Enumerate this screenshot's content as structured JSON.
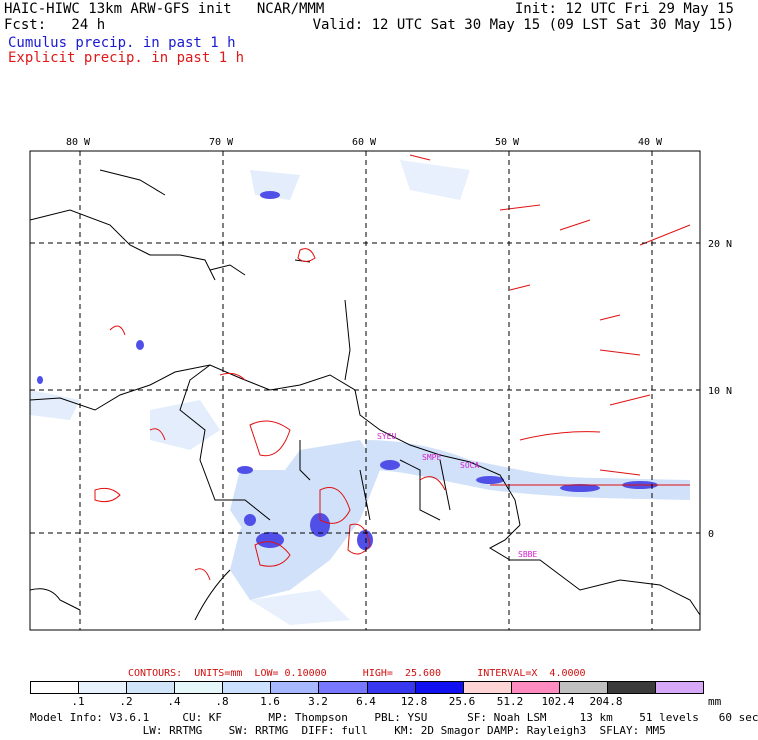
{
  "header": {
    "title": "HAIC-HIWC 13km ARW-GFS init   NCAR/MMM",
    "fcst": "Fcst:   24 h",
    "init": "Init: 12 UTC Fri 29 May 15",
    "valid": "Valid: 12 UTC Sat 30 May 15 (09 LST Sat 30 May 15)",
    "cumulus_label": "Cumulus precip. in past 1 h",
    "explicit_label": "Explicit precip. in past 1 h"
  },
  "map": {
    "longitude_labels": [
      "80 W",
      "70 W",
      "60 W",
      "50 W",
      "40 W"
    ],
    "latitude_labels": [
      "20 N",
      "10 N",
      "0"
    ],
    "station_labels": [
      "SYEU",
      "SMPE",
      "SOCA",
      "SBBE"
    ],
    "colors": {
      "cumulus": "#3030e0",
      "explicit": "#e01010",
      "station": "#d020d0"
    }
  },
  "legend": {
    "contours": "CONTOURS:  UNITS=mm  LOW= 0.10000      HIGH=  25.600      INTERVAL=X  4.0000",
    "levels": [
      ".1",
      ".2",
      ".4",
      ".8",
      "1.6",
      "3.2",
      "6.4",
      "12.8",
      "25.6",
      "51.2",
      "102.4",
      "204.8"
    ],
    "colors": [
      "#ffffff",
      "#e8f2ff",
      "#d0e6f8",
      "#e6f8fa",
      "#cce0ff",
      "#a8b8ff",
      "#7878ff",
      "#3838f0",
      "#1010f0",
      "#ffd4d4",
      "#ff8cc0",
      "#c0c0c0",
      "#3a3a3a",
      "#d8a8f8"
    ],
    "units": "mm"
  },
  "model_info": {
    "line1": "Model Info: V3.6.1     CU: KF       MP: Thompson    PBL: YSU      SF: Noah LSM     13 km    51 levels   60 sec",
    "line2": "                 LW: RRTMG    SW: RRTMG  DIFF: full    KM: 2D Smagor DAMP: Rayleigh3  SFLAY: MM5"
  }
}
